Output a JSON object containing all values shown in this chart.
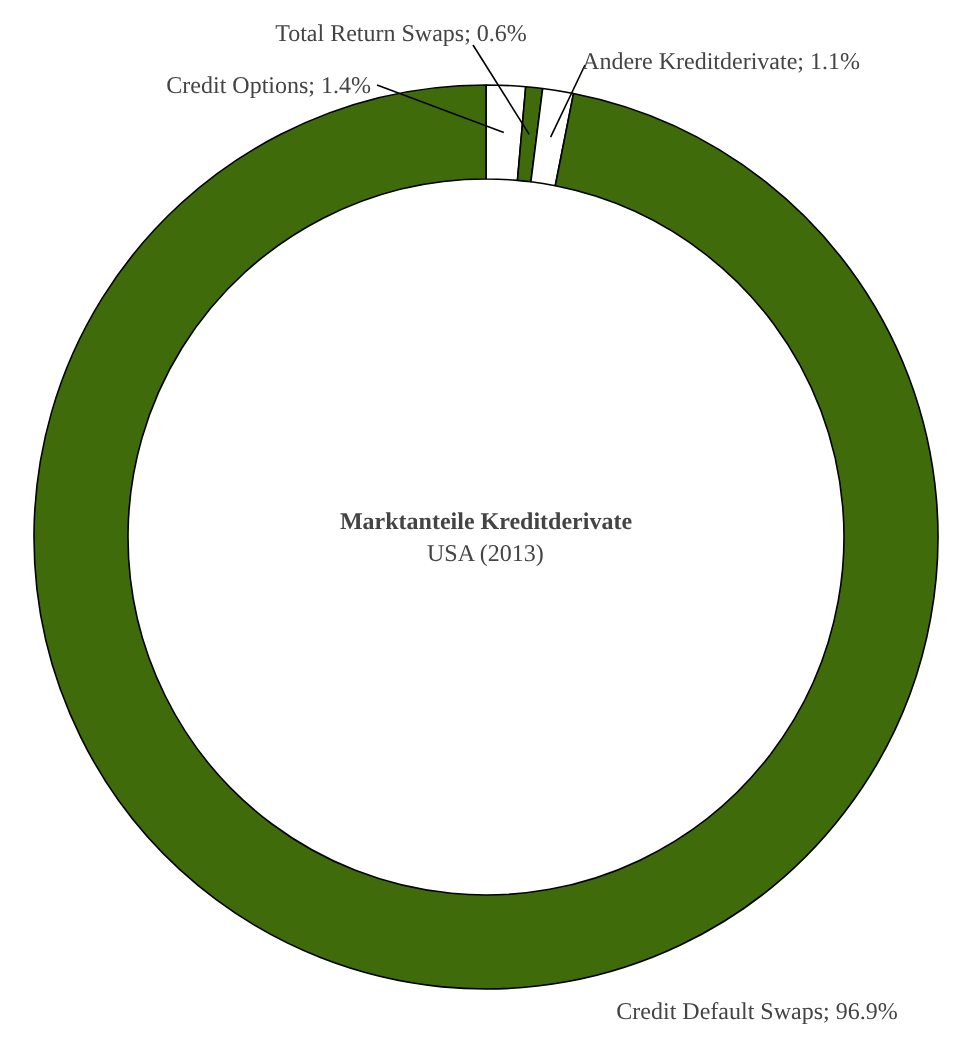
{
  "chart_data": {
    "type": "donut",
    "title": "Marktanteile Kreditderivate",
    "subtitle": "USA (2013)",
    "categories": [
      "Credit Options",
      "Total Return Swaps",
      "Andere Kreditderivate",
      "Credit Default Swaps"
    ],
    "values": [
      1.4,
      0.6,
      1.1,
      96.9
    ],
    "colors": [
      "#ffffff",
      "#3f6b0b",
      "#ffffff",
      "#3f6b0b"
    ],
    "value_labels": [
      "1.4%",
      "0.6%",
      "1.1%",
      "96.9%"
    ]
  }
}
